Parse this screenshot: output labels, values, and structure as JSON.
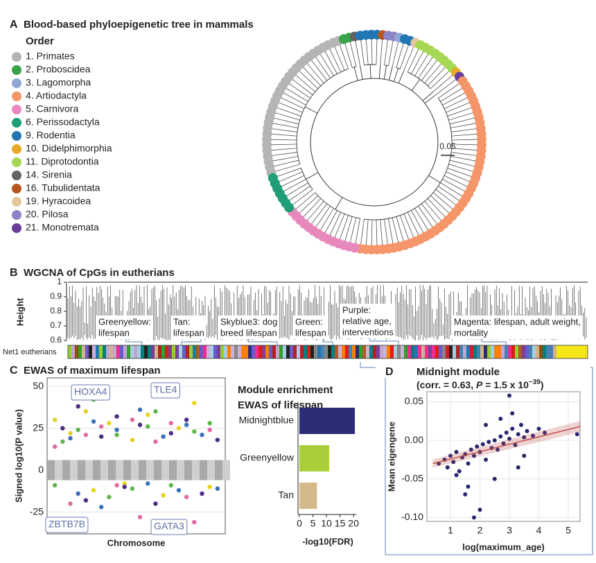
{
  "panel_a": {
    "letter": "A",
    "title": "Blood-based phyloepigenetic tree in mammals",
    "legend_title": "Order",
    "orders": [
      {
        "name": "1. Primates",
        "color": "#b5b5b5"
      },
      {
        "name": "2. Proboscidea",
        "color": "#3aa34a"
      },
      {
        "name": "3. Lagomorpha",
        "color": "#8fa8d6"
      },
      {
        "name": "4. Artiodactyla",
        "color": "#f4956a"
      },
      {
        "name": "5. Carnivora",
        "color": "#e889bd"
      },
      {
        "name": "6. Perissodactyla",
        "color": "#1f9e77"
      },
      {
        "name": "9. Rodentia",
        "color": "#2176b4"
      },
      {
        "name": "10. Didelphimorphia",
        "color": "#e7aa2a"
      },
      {
        "name": "11. Diprotodontia",
        "color": "#a6d854"
      },
      {
        "name": "14. Sirenia",
        "color": "#636363"
      },
      {
        "name": "16. Tubulidentata",
        "color": "#b5571f"
      },
      {
        "name": "19. Hyracoidea",
        "color": "#e4c79a"
      },
      {
        "name": "20. Pilosa",
        "color": "#8d83c7"
      },
      {
        "name": "21. Monotremata",
        "color": "#6a3d9a"
      }
    ],
    "clades": [
      {
        "order": 0,
        "leaves": 30
      },
      {
        "order": 1,
        "leaves": 2
      },
      {
        "order": 9,
        "leaves": 1
      },
      {
        "order": 6,
        "leaves": 4
      },
      {
        "order": 10,
        "leaves": 1
      },
      {
        "order": 12,
        "leaves": 2
      },
      {
        "order": 2,
        "leaves": 1
      },
      {
        "order": 6,
        "leaves": 2
      },
      {
        "order": 11,
        "leaves": 1
      },
      {
        "order": 8,
        "leaves": 8
      },
      {
        "order": 7,
        "leaves": 1
      },
      {
        "order": 13,
        "leaves": 1
      },
      {
        "order": 3,
        "leaves": 45
      },
      {
        "order": 4,
        "leaves": 14
      },
      {
        "order": 5,
        "leaves": 7
      }
    ],
    "scale_label": "0.05"
  },
  "panel_b": {
    "letter": "B",
    "title": "WGCNA of CpGs in eutherians",
    "y_label": "Height",
    "ylim": [
      0.6,
      1
    ],
    "yticks": [
      0.6,
      0.7,
      0.8,
      0.9,
      1
    ],
    "bar_label": "Net1 eutherians",
    "modules": [
      {
        "lines": [
          "Greenyellow:",
          "lifespan"
        ]
      },
      {
        "lines": [
          "Tan:",
          "lifespan"
        ]
      },
      {
        "lines": [
          "Skyblue3: dog",
          "breed lifespan"
        ]
      },
      {
        "lines": [
          "Green:",
          "lifespan"
        ]
      },
      {
        "lines": [
          "Purple:",
          "relative age,",
          "interventions"
        ]
      },
      {
        "lines": [
          "Magenta: lifespan, adult weight,",
          "mortality"
        ]
      }
    ]
  },
  "chart_data": [
    {
      "type": "scatter",
      "letter": "C",
      "title": "EWAS of maximum lifespan",
      "y_label": "Signed log10(P value)",
      "x_label": "Chromosome",
      "xlim": [
        0,
        23
      ],
      "ylim": [
        -38,
        55
      ],
      "yticks": [
        -25,
        0,
        25,
        50
      ],
      "annotations": [
        "HOXA4",
        "TLE4",
        "ZBTB7B",
        "GATA3"
      ],
      "series": [
        {
          "color": "#e6d21e",
          "x": [
            1,
            3,
            5,
            6,
            8,
            10,
            11,
            13,
            15,
            17,
            19,
            21
          ],
          "values": [
            30,
            22,
            35,
            -12,
            28,
            -8,
            18,
            33,
            -15,
            25,
            40,
            -10
          ]
        },
        {
          "color": "#4b2d84",
          "x": [
            2,
            4,
            5,
            7,
            9,
            10,
            12,
            14,
            16,
            18,
            20,
            22
          ],
          "values": [
            25,
            38,
            -18,
            20,
            32,
            -10,
            27,
            -20,
            22,
            30,
            -14,
            18
          ]
        },
        {
          "color": "#5fb548",
          "x": [
            1,
            2,
            4,
            6,
            8,
            9,
            11,
            13,
            14,
            16,
            19,
            21
          ],
          "values": [
            -9,
            17,
            24,
            42,
            -16,
            21,
            -11,
            26,
            35,
            -9,
            23,
            28
          ]
        },
        {
          "color": "#3b6fb6",
          "x": [
            3,
            4,
            6,
            7,
            9,
            12,
            13,
            15,
            17,
            18,
            20,
            22
          ],
          "values": [
            19,
            -14,
            29,
            -22,
            24,
            36,
            -8,
            20,
            -12,
            27,
            21,
            -11
          ]
        },
        {
          "color": "#e06aa0",
          "x": [
            1,
            3,
            5,
            7,
            9,
            11,
            12,
            14,
            16,
            18,
            19,
            21
          ],
          "values": [
            14,
            -20,
            21,
            26,
            -9,
            30,
            -28,
            17,
            28,
            -16,
            -31,
            24
          ]
        }
      ]
    },
    {
      "type": "hbar",
      "title_lines": [
        "Module enrichment",
        "EWAS of lifespan"
      ],
      "x_label": "-log10(FDR)",
      "categories": [
        "Midnightblue",
        "Greenyellow",
        "Tan"
      ],
      "values": [
        20.5,
        11,
        6.5
      ],
      "colors": [
        "#2c2c77",
        "#a8cf3a",
        "#d6b98a"
      ],
      "xlim": [
        0,
        21
      ],
      "xticks": [
        0,
        5,
        10,
        15,
        20
      ]
    },
    {
      "type": "scatter",
      "letter": "D",
      "title": "Midnight module",
      "subtitle_parts": [
        "(corr. = 0.63, ",
        "P",
        " = 1.5 x 10",
        "−39",
        ")"
      ],
      "x_label": "log(maximum_age)",
      "y_label": "Mean eigengene",
      "xlim": [
        0.2,
        5.4
      ],
      "ylim": [
        -0.105,
        0.063
      ],
      "xticks": [
        1,
        2,
        3,
        4,
        5
      ],
      "yticks": [
        {
          "value": -0.1,
          "label": "-0.10"
        },
        -0.05,
        {
          "value": 0,
          "label": "0.00"
        },
        0.05
      ],
      "fit": {
        "color": "#c0504d",
        "x": [
          0.4,
          5.4
        ],
        "y": [
          -0.03,
          0.018
        ]
      },
      "series": [
        {
          "color": "#27276e",
          "x": [
            0.6,
            0.8,
            0.9,
            1.0,
            1.1,
            1.2,
            1.3,
            1.4,
            1.5,
            1.6,
            1.7,
            1.8,
            1.9,
            2.0,
            2.1,
            2.2,
            2.3,
            2.4,
            2.5,
            2.6,
            2.7,
            2.8,
            2.9,
            3.0,
            3.1,
            3.2,
            3.3,
            3.4,
            3.5,
            3.6,
            3.8,
            4.0,
            4.2,
            1.5,
            2.0,
            2.5,
            3.0,
            3.5,
            1.2,
            1.8,
            3.1,
            2.2,
            1.6,
            5.3,
            3.3,
            2.7
          ],
          "values": [
            -0.03,
            -0.025,
            -0.035,
            -0.02,
            -0.028,
            -0.015,
            -0.04,
            -0.022,
            -0.018,
            -0.03,
            -0.012,
            -0.02,
            -0.008,
            -0.015,
            -0.005,
            -0.025,
            -0.002,
            -0.01,
            0.0,
            -0.012,
            0.005,
            -0.004,
            0.01,
            0.002,
            0.015,
            -0.006,
            0.008,
            0.02,
            0.004,
            0.012,
            0.006,
            0.015,
            0.01,
            -0.07,
            -0.09,
            -0.05,
            0.058,
            -0.02,
            -0.045,
            -0.1,
            0.035,
            0.02,
            -0.06,
            0.008,
            -0.035,
            0.028
          ]
        }
      ]
    }
  ]
}
